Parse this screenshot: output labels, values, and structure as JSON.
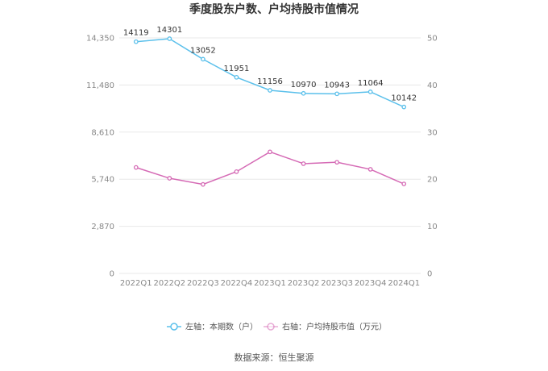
{
  "chart_data": {
    "type": "line",
    "title": "季度股东户数、户均持股市值情况",
    "categories": [
      "2022Q1",
      "2022Q2",
      "2022Q3",
      "2022Q4",
      "2023Q1",
      "2023Q2",
      "2023Q3",
      "2023Q4",
      "2024Q1"
    ],
    "left_axis": {
      "ticks": [
        "0",
        "2,870",
        "5,740",
        "8,610",
        "11,480",
        "14,350"
      ],
      "ylim": [
        0,
        14350
      ]
    },
    "right_axis": {
      "ticks": [
        "0",
        "10",
        "20",
        "30",
        "40",
        "50"
      ],
      "ylim": [
        0,
        50
      ]
    },
    "series": [
      {
        "name": "左轴：本期数（户）",
        "axis": "left",
        "color": "#5bc0eb",
        "values": [
          14119,
          14301,
          13052,
          11951,
          11156,
          10970,
          10943,
          11064,
          10142
        ],
        "labels": [
          "14119",
          "14301",
          "13052",
          "11951",
          "11156",
          "10970",
          "10943",
          "11064",
          "10142"
        ]
      },
      {
        "name": "右轴：户均持股市值（万元）",
        "axis": "right",
        "color": "#d56ab5",
        "values": [
          22.5,
          20.2,
          18.9,
          21.6,
          25.8,
          23.3,
          23.6,
          22.1,
          19.0
        ]
      }
    ],
    "grid": true,
    "legend": "bottom-center",
    "source": "数据来源：恒生聚源"
  }
}
